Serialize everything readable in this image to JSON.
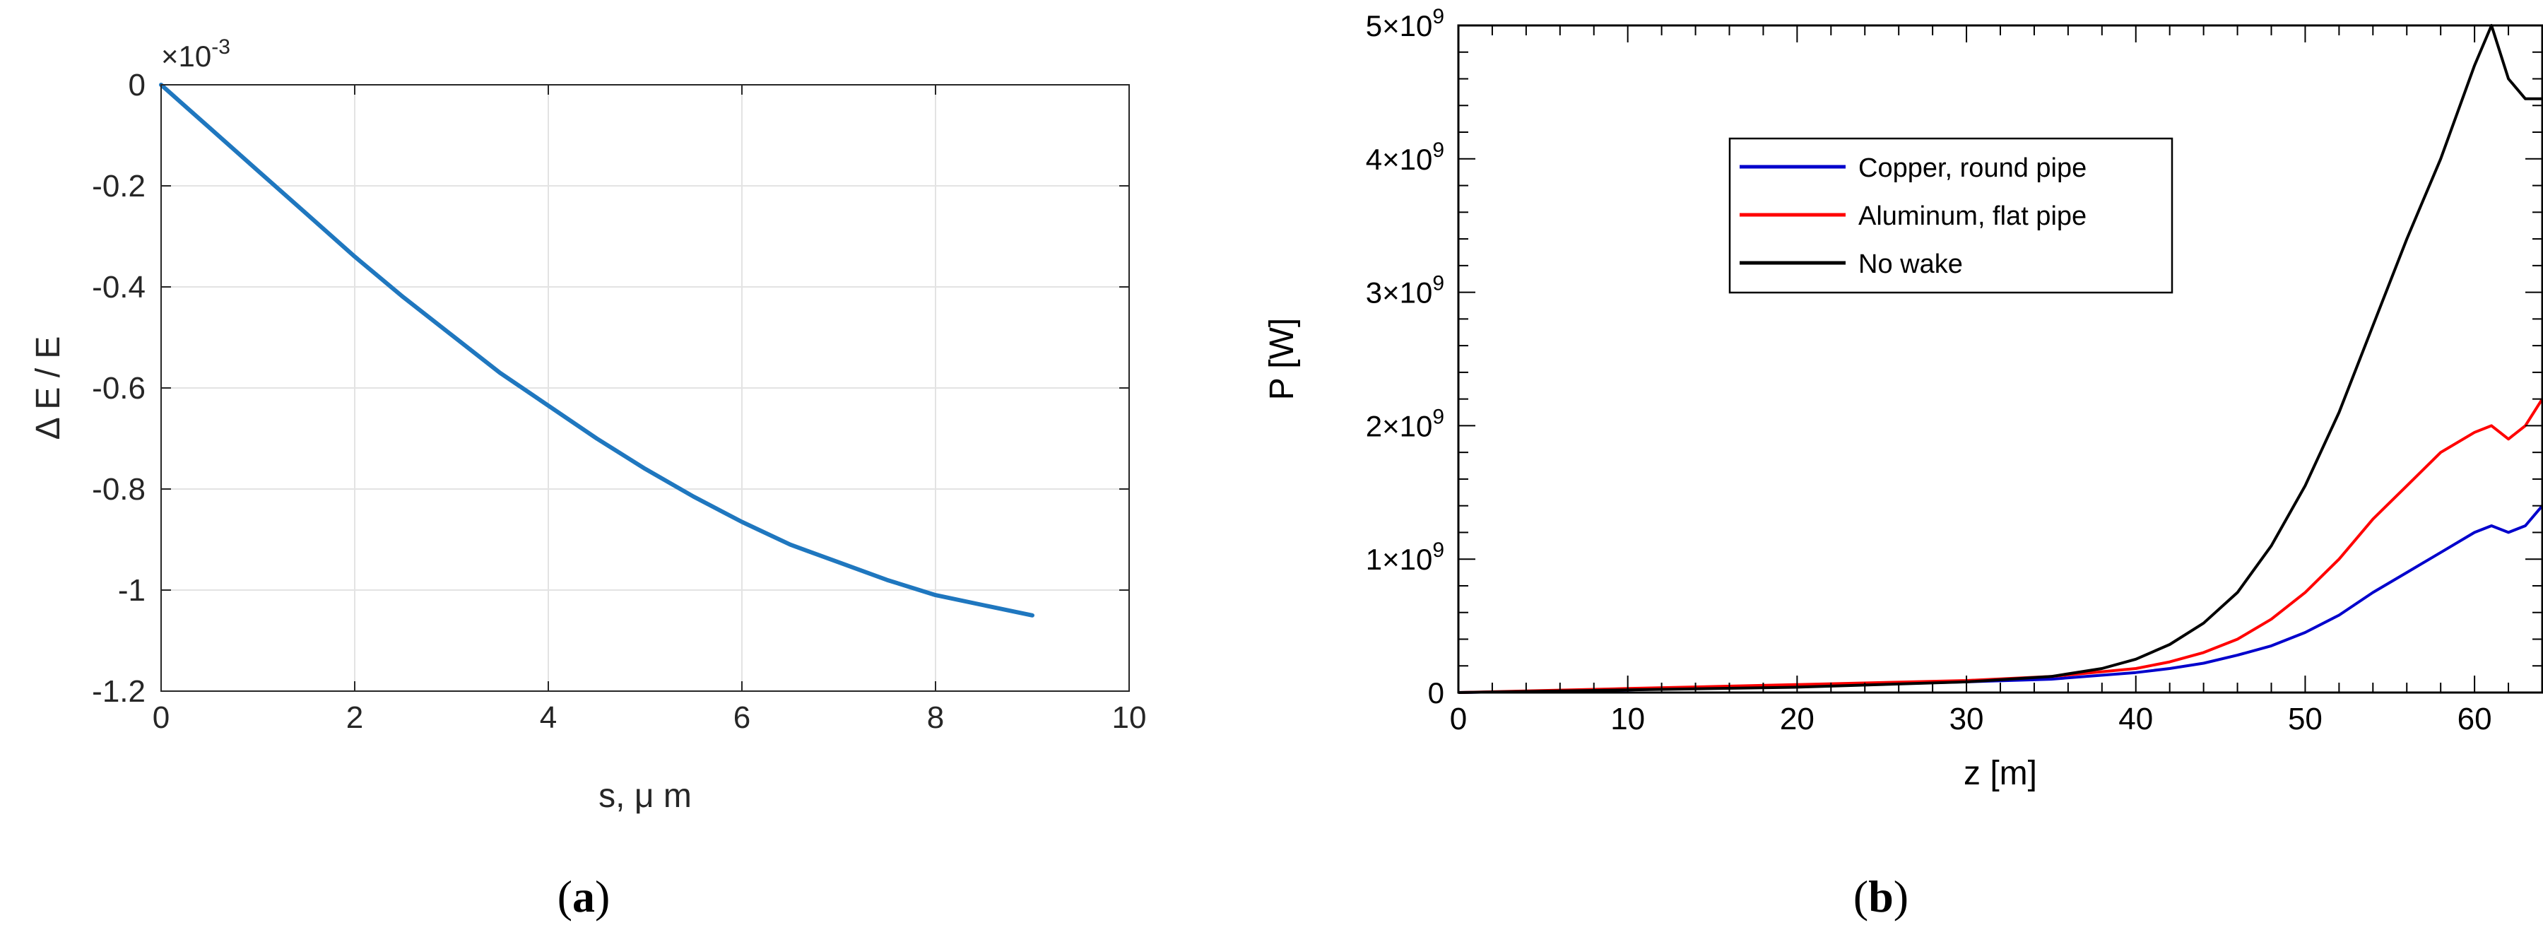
{
  "chart_data": [
    {
      "type": "line",
      "panel_label": "(a)",
      "panel_label_letter": "a",
      "xlabel": "s, μ m",
      "ylabel": "Δ E / E",
      "scale_note": "×10",
      "scale_exponent": "-3",
      "xlim": [
        0,
        10
      ],
      "ylim": [
        -1.2,
        0
      ],
      "x_ticks": [
        0,
        2,
        4,
        6,
        8,
        10
      ],
      "x_tick_labels": [
        "0",
        "2",
        "4",
        "6",
        "8",
        "10"
      ],
      "y_ticks": [
        0,
        -0.2,
        -0.4,
        -0.6,
        -0.8,
        -1,
        -1.2
      ],
      "y_tick_labels": [
        "0",
        "-0.2",
        "-0.4",
        "-0.6",
        "-0.8",
        "-1",
        "-1.2"
      ],
      "grid": true,
      "colors": {
        "line": "#1f77bf",
        "grid": "#e3e3e3",
        "axis": "#262626",
        "tick_text": "#262626"
      },
      "series": [
        {
          "x": [
            0,
            0.5,
            1,
            1.5,
            2,
            2.5,
            3,
            3.5,
            4,
            4.5,
            5,
            5.5,
            6,
            6.5,
            7,
            7.5,
            8,
            8.5,
            9
          ],
          "y": [
            0,
            -0.085,
            -0.17,
            -0.255,
            -0.34,
            -0.42,
            -0.495,
            -0.57,
            -0.635,
            -0.7,
            -0.76,
            -0.815,
            -0.865,
            -0.91,
            -0.945,
            -0.98,
            -1.01,
            -1.03,
            -1.05
          ]
        }
      ]
    },
    {
      "type": "line",
      "panel_label": "(b)",
      "panel_label_letter": "b",
      "xlabel": "z [m]",
      "ylabel": "P [W]",
      "xlim": [
        0,
        64
      ],
      "ylim": [
        0,
        5000000000.0
      ],
      "x_ticks": [
        0,
        10,
        20,
        30,
        40,
        50,
        60
      ],
      "x_tick_labels": [
        "0",
        "10",
        "20",
        "30",
        "40",
        "50",
        "60"
      ],
      "y_ticks": [
        0,
        1000000000.0,
        2000000000.0,
        3000000000.0,
        4000000000.0,
        5000000000.0
      ],
      "y_tick_labels": [
        {
          "mantissa": "0",
          "base": "",
          "exp": ""
        },
        {
          "mantissa": "1",
          "base": "×10",
          "exp": "9"
        },
        {
          "mantissa": "2",
          "base": "×10",
          "exp": "9"
        },
        {
          "mantissa": "3",
          "base": "×10",
          "exp": "9"
        },
        {
          "mantissa": "4",
          "base": "×10",
          "exp": "9"
        },
        {
          "mantissa": "5",
          "base": "×10",
          "exp": "9"
        }
      ],
      "grid": false,
      "legend_position": "top-center",
      "colors": {
        "axis": "#000000"
      },
      "series": [
        {
          "name": "Copper, round pipe",
          "color": "#0000cc",
          "x": [
            0,
            10,
            20,
            30,
            35,
            40,
            42,
            44,
            46,
            48,
            50,
            52,
            54,
            56,
            58,
            60,
            61,
            62,
            63,
            64
          ],
          "y": [
            0,
            20000000.0,
            50000000.0,
            80000000.0,
            100000000.0,
            150000000.0,
            180000000.0,
            220000000.0,
            280000000.0,
            350000000.0,
            450000000.0,
            580000000.0,
            750000000.0,
            900000000.0,
            1050000000.0,
            1200000000.0,
            1250000000.0,
            1200000000.0,
            1250000000.0,
            1400000000.0
          ]
        },
        {
          "name": "Aluminum, flat pipe",
          "color": "#ff0000",
          "x": [
            0,
            10,
            20,
            30,
            35,
            40,
            42,
            44,
            46,
            48,
            50,
            52,
            54,
            56,
            58,
            60,
            61,
            62,
            63,
            64
          ],
          "y": [
            0,
            30000000.0,
            60000000.0,
            90000000.0,
            120000000.0,
            180000000.0,
            230000000.0,
            300000000.0,
            400000000.0,
            550000000.0,
            750000000.0,
            1000000000.0,
            1300000000.0,
            1550000000.0,
            1800000000.0,
            1950000000.0,
            2000000000.0,
            1900000000.0,
            2000000000.0,
            2200000000.0
          ]
        },
        {
          "name": "No wake",
          "color": "#000000",
          "x": [
            0,
            10,
            20,
            30,
            35,
            38,
            40,
            42,
            44,
            46,
            48,
            50,
            52,
            54,
            56,
            58,
            60,
            61,
            62,
            63,
            64
          ],
          "y": [
            0,
            20000000.0,
            40000000.0,
            80000000.0,
            120000000.0,
            180000000.0,
            250000000.0,
            360000000.0,
            520000000.0,
            750000000.0,
            1100000000.0,
            1550000000.0,
            2100000000.0,
            2750000000.0,
            3400000000.0,
            4000000000.0,
            4700000000.0,
            5000000000.0,
            4600000000.0,
            4450000000.0,
            4450000000.0
          ]
        }
      ]
    }
  ]
}
